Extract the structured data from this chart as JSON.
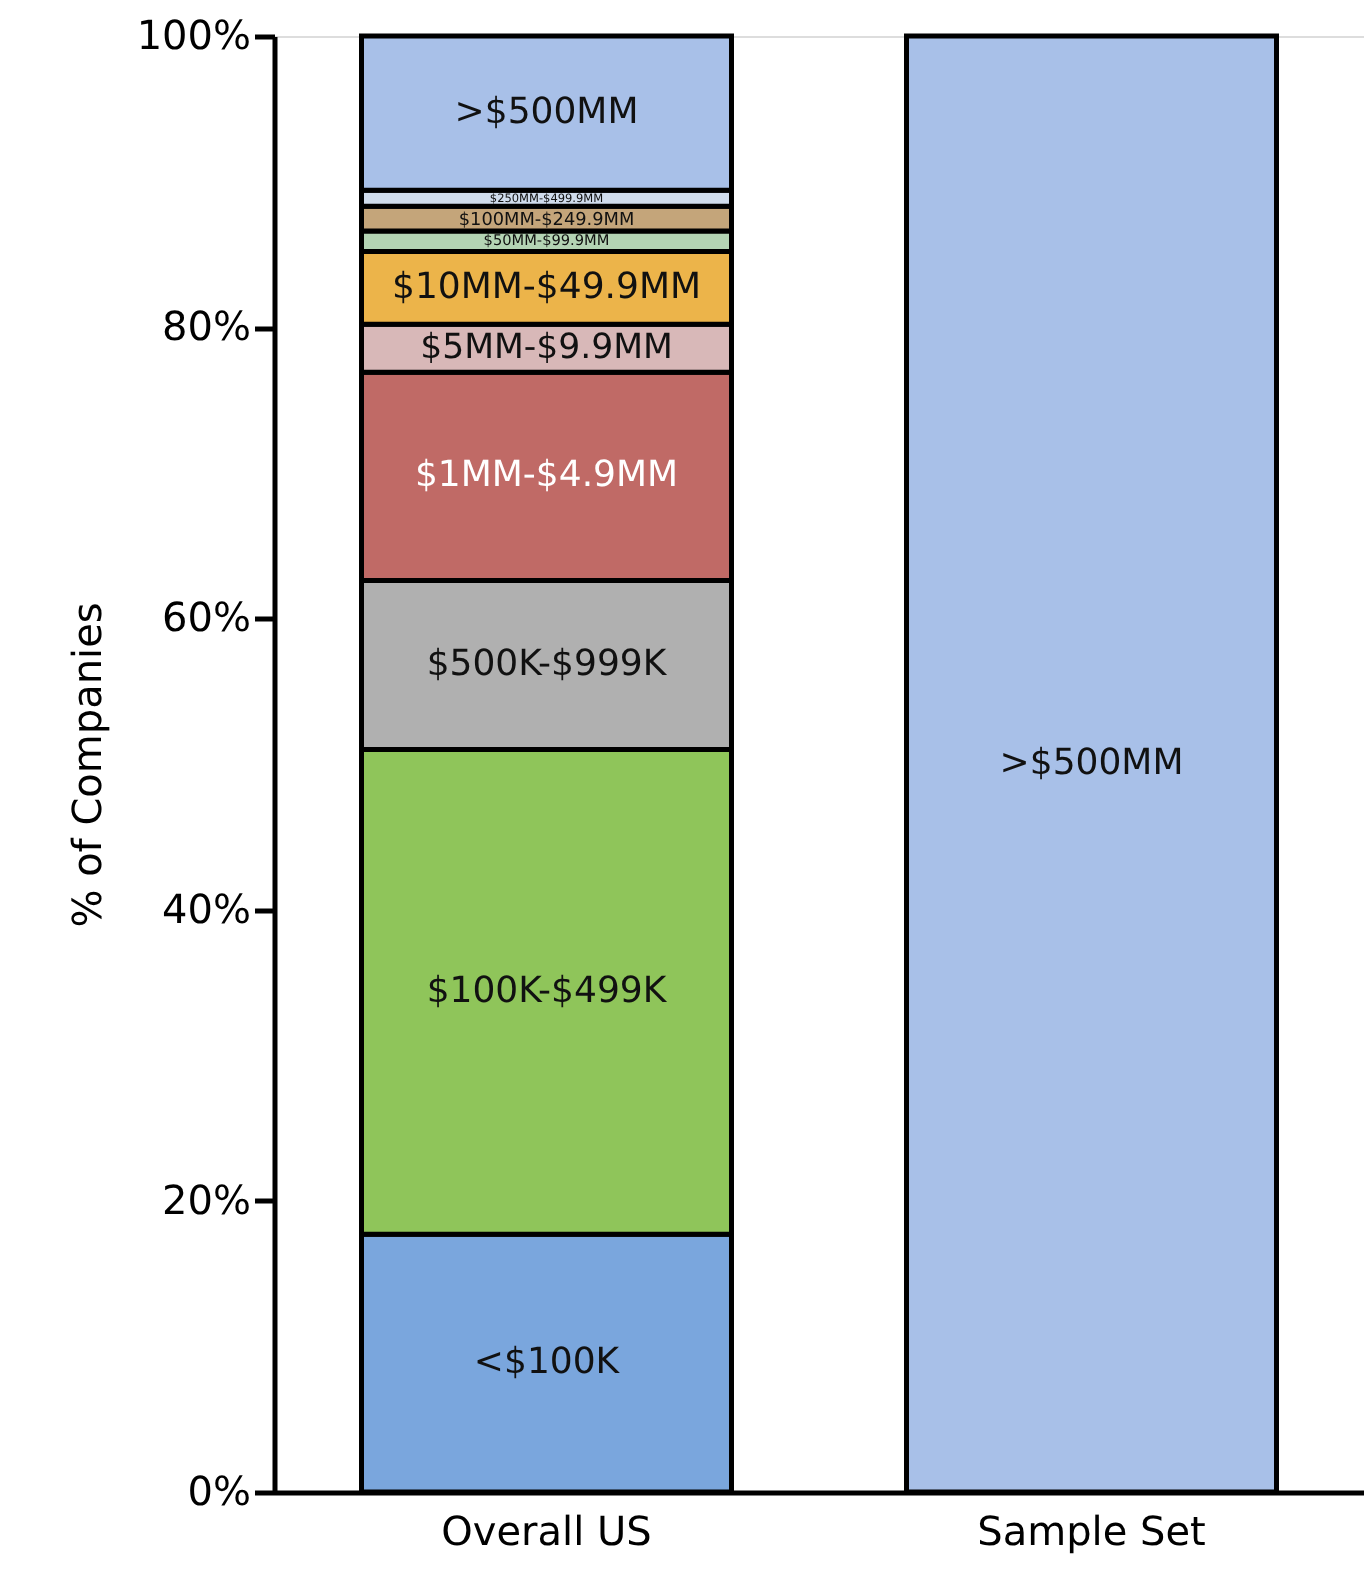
{
  "chart_data": {
    "type": "bar",
    "stacked": true,
    "ylabel": "% of Companies",
    "categories": [
      "Overall US",
      "Sample Set"
    ],
    "series": [
      {
        "name": "<$100K",
        "color": "#7aa6dd",
        "values": [
          17.7,
          0
        ]
      },
      {
        "name": "$100K-$499K",
        "color": "#8fc55a",
        "values": [
          33.3,
          0
        ]
      },
      {
        "name": "$500K-$999K",
        "color": "#b0b0b0",
        "values": [
          11.6,
          0
        ]
      },
      {
        "name": "$1MM-$4.9MM",
        "color": "#c06a66",
        "values": [
          14.3,
          0
        ]
      },
      {
        "name": "$5MM-$9.9MM",
        "color": "#d8b8b8",
        "values": [
          3.3,
          0
        ]
      },
      {
        "name": "$10MM-$49.9MM",
        "color": "#ecb44a",
        "values": [
          5.0,
          0
        ]
      },
      {
        "name": "$50MM-$99.9MM",
        "color": "#b4d4b4",
        "values": [
          1.4,
          0
        ]
      },
      {
        "name": "$100MM-$249.9MM",
        "color": "#c4a57a",
        "values": [
          1.7,
          0
        ]
      },
      {
        "name": "$250MM-$499.9MM",
        "color": "#d0dcec",
        "values": [
          1.1,
          0
        ]
      },
      {
        "name": ">$500MM",
        "color": "#a8c0e8",
        "values": [
          10.6,
          100
        ]
      }
    ],
    "ylim": [
      0,
      100
    ],
    "yticks": [
      {
        "value": 0,
        "label": "0%"
      },
      {
        "value": 20,
        "label": "20%"
      },
      {
        "value": 40,
        "label": "40%"
      },
      {
        "value": 60,
        "label": "60%"
      },
      {
        "value": 80,
        "label": "80%"
      },
      {
        "value": 100,
        "label": "100%"
      }
    ],
    "grid": false
  }
}
